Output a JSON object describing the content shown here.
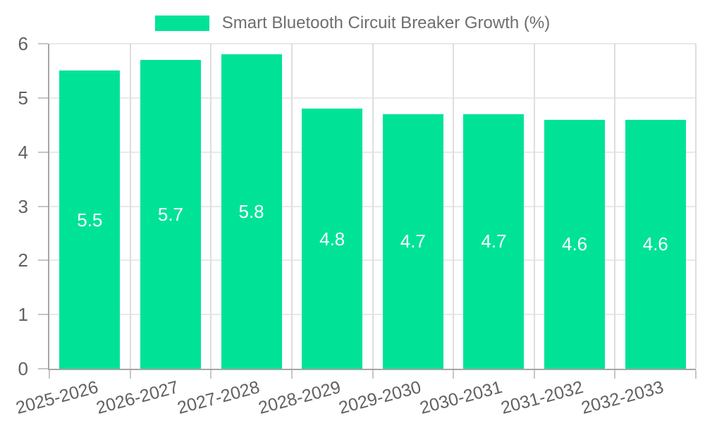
{
  "legend": {
    "label": "Smart Bluetooth Circuit Breaker Growth (%)",
    "position": "top"
  },
  "chart_data": {
    "type": "bar",
    "title": "",
    "xlabel": "",
    "ylabel": "",
    "categories": [
      "2025-2026",
      "2026-2027",
      "2027-2028",
      "2028-2029",
      "2029-2030",
      "2030-2031",
      "2031-2032",
      "2032-2033"
    ],
    "series": [
      {
        "name": "Smart Bluetooth Circuit Breaker Growth (%)",
        "values": [
          5.5,
          5.7,
          5.8,
          4.8,
          4.7,
          4.7,
          4.6,
          4.6
        ]
      }
    ],
    "data_labels": [
      "5.5",
      "5.7",
      "5.8",
      "4.8",
      "4.7",
      "4.7",
      "4.6",
      "4.6"
    ],
    "yticks": [
      0,
      1,
      2,
      3,
      4,
      5,
      6
    ],
    "ylim": [
      0,
      6
    ],
    "grid": "on",
    "legend_position": "top",
    "x_label_rotation_deg": -15,
    "bar_width_ratio": 0.75
  },
  "colors": {
    "background": "#ffffff",
    "bar": "#00E396",
    "grid_horizontal": "#e9e9e9",
    "grid_vertical": "#dedede",
    "axis_border": "#a6a6a6",
    "tick_mark": "#c6c6c6",
    "tick_label": "#616161",
    "legend_label": "#6e6e6e",
    "data_label": "#ffffff"
  }
}
